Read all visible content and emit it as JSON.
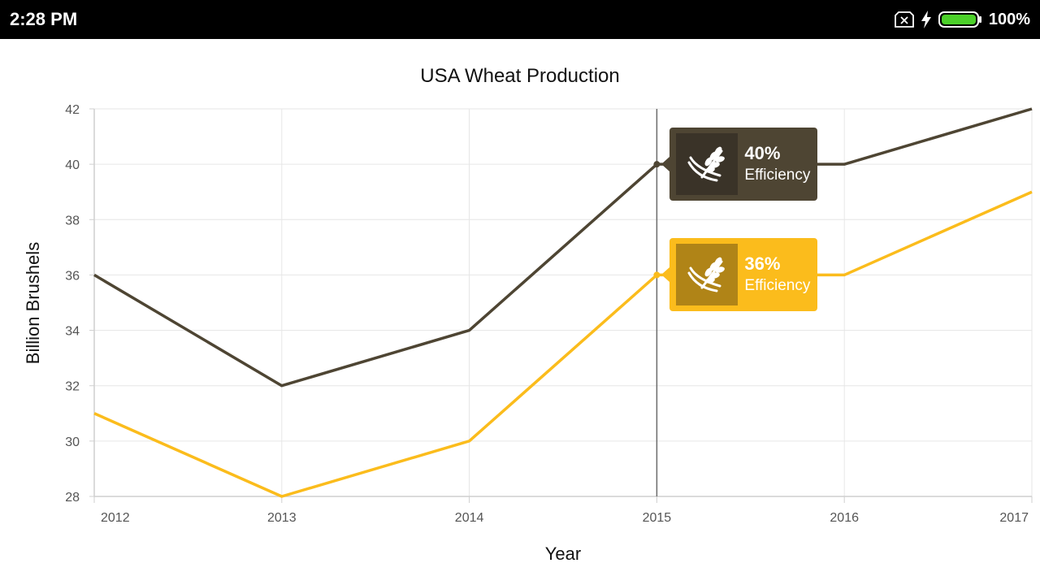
{
  "status_bar": {
    "time": "2:28 PM",
    "battery_percent": "100%",
    "battery_level": 1.0,
    "battery_color": "#4cd12a",
    "icons": [
      "sim-card-x-icon",
      "charging-bolt-icon",
      "battery-icon"
    ]
  },
  "colors": {
    "series_dark": "#4e4533",
    "series_yellow": "#fbbc1c",
    "tooltip_dark_bg": "#4e4533",
    "tooltip_dark_icon_bg": "#3a3328",
    "tooltip_yellow_bg": "#fbbc1c",
    "tooltip_yellow_icon_bg": "#b08417"
  },
  "chart_data": {
    "type": "line",
    "title": "USA Wheat Production",
    "xlabel": "Year",
    "ylabel": "Billion Brushels",
    "categories": [
      "2012",
      "2013",
      "2014",
      "2015",
      "2016",
      "2017"
    ],
    "ylim": [
      28,
      42
    ],
    "yticks": [
      28,
      30,
      32,
      34,
      36,
      38,
      40,
      42
    ],
    "grid": true,
    "legend": "none",
    "series": [
      {
        "values": [
          36,
          32,
          34,
          40,
          40,
          42
        ],
        "color": "#4e4533"
      },
      {
        "values": [
          31,
          28,
          30,
          36,
          36,
          39
        ],
        "color": "#fbbc1c"
      }
    ],
    "crosshair_category": "2015",
    "tooltips": [
      {
        "value": "40%",
        "label": "Efficiency",
        "icon": "wheat-icon",
        "series_index": 0
      },
      {
        "value": "36%",
        "label": "Efficiency",
        "icon": "wheat-icon",
        "series_index": 1
      }
    ]
  }
}
